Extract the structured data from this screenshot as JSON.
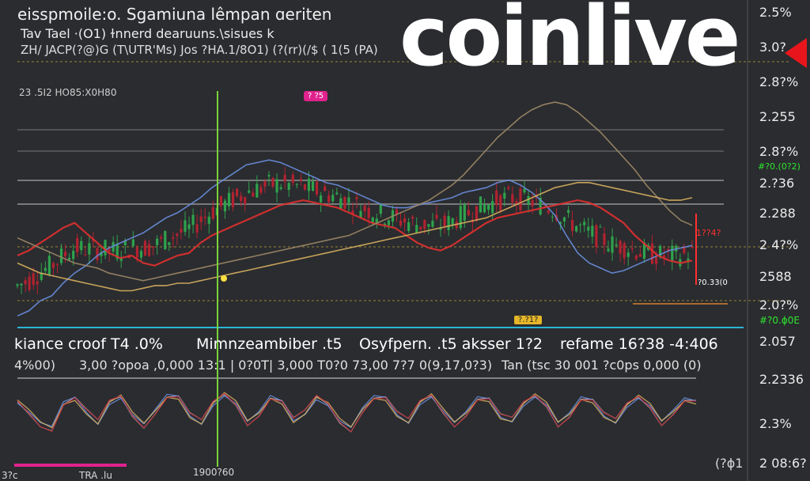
{
  "header": {
    "line1": "eisspmoile:o. Sgamiuna lêmpan ɑeriten",
    "line2": "Tav Tael ·(O1) ɫnnerd dearuuns.\\sisues k",
    "line3": "ZH/ JACP(?@)G (T\\UTR'Ms) Jos ?HA.1/8O1) (?(rr)(/$ ( 1(5 (PA)"
  },
  "sub_label": "23 .5I2 HO85:X0H80",
  "logo": {
    "text": "coinlive",
    "color": "#ffffff",
    "accent_color": "#e8161c"
  },
  "right_axis": {
    "labels": [
      "2.5%",
      "3.0?",
      "2.8?%",
      "2.255",
      "2.8?%",
      "2.?36",
      "2.288",
      "2 4?%",
      "2588",
      "2.0?%",
      "2.057",
      "2.2336",
      "2.3%",
      "2 08:6?"
    ],
    "colored_labels": [
      {
        "text": "#?0.(0?2)",
        "color": "#2ee62e"
      },
      {
        "text": "1??4?",
        "color": "#ff3030"
      },
      {
        "text": "?0.33(0",
        "color": "#ffffff"
      },
      {
        "text": "#?0.ɸ0E",
        "color": "#2ee62e"
      }
    ]
  },
  "indicator_labels": [
    {
      "text": "kiance croof  T4   .0%"
    },
    {
      "text": "Mimnzeambiber  .t5"
    },
    {
      "text": "Osyfpern. .t5  aksser  1?2"
    },
    {
      "text": "refame   16?38 -4:406"
    }
  ],
  "indicator_values": [
    {
      "text": "4%00)"
    },
    {
      "text": "3,00 ?opoa ,0,000 13:1 | 0?0T|  3,000  T0?0 73,00 7?7 0(9,17,0?3)"
    },
    {
      "text": "Tan (tsc 30 001 ?c0ps 0,000 (0)"
    }
  ],
  "bottom_labels": [
    "3?c",
    "TRA .lu",
    "1900?60",
    "(?ɸ1"
  ],
  "badges": [
    {
      "text": "? ?5",
      "color": "#e0228e"
    },
    {
      "text": "?.?1?",
      "color": "#e6b62a"
    }
  ],
  "colors": {
    "background": "#2a2c2f",
    "candle_up": "#2fa24c",
    "candle_down": "#b22230",
    "ma_red": "#e03030",
    "ma_blue": "#6a8ee0",
    "ma_yellow": "#d8b060",
    "cursor_green": "#7ad13a",
    "baseline_cyan": "#2ab6d8"
  },
  "chart_data": {
    "type": "line",
    "series": [
      {
        "values": [
          1.98,
          2.02,
          2.1,
          2.14,
          2.24,
          2.32,
          2.38,
          2.46,
          2.52,
          2.56,
          2.6,
          2.64,
          2.7,
          2.76,
          2.8,
          2.86,
          2.92,
          3.0,
          3.06,
          3.12,
          3.18,
          3.2,
          3.22,
          3.2,
          3.16,
          3.12,
          3.08,
          3.04,
          3.02,
          2.98,
          2.94,
          2.9,
          2.86,
          2.84,
          2.84,
          2.86,
          2.88,
          2.9,
          2.92,
          2.96,
          2.98,
          3.0,
          3.04,
          3.06,
          3.02,
          2.96,
          2.88,
          2.78,
          2.62,
          2.48,
          2.4,
          2.36,
          2.32,
          2.34,
          2.38,
          2.42,
          2.46,
          2.5,
          2.52,
          2.54
        ]
      },
      {
        "values": [
          2.46,
          2.5,
          2.56,
          2.62,
          2.68,
          2.72,
          2.64,
          2.56,
          2.48,
          2.44,
          2.46,
          2.4,
          2.38,
          2.42,
          2.46,
          2.48,
          2.56,
          2.62,
          2.66,
          2.7,
          2.74,
          2.78,
          2.82,
          2.86,
          2.88,
          2.9,
          2.88,
          2.86,
          2.84,
          2.8,
          2.76,
          2.72,
          2.7,
          2.68,
          2.62,
          2.56,
          2.52,
          2.5,
          2.54,
          2.6,
          2.66,
          2.72,
          2.76,
          2.78,
          2.8,
          2.82,
          2.84,
          2.86,
          2.88,
          2.9,
          2.88,
          2.84,
          2.78,
          2.72,
          2.62,
          2.54,
          2.46,
          2.42,
          2.4,
          2.42
        ]
      },
      {
        "values": [
          2.6,
          2.56,
          2.52,
          2.48,
          2.44,
          2.4,
          2.38,
          2.36,
          2.32,
          2.3,
          2.28,
          2.26,
          2.28,
          2.3,
          2.32,
          2.34,
          2.36,
          2.38,
          2.4,
          2.42,
          2.44,
          2.46,
          2.48,
          2.5,
          2.52,
          2.54,
          2.56,
          2.58,
          2.6,
          2.62,
          2.66,
          2.7,
          2.74,
          2.78,
          2.82,
          2.86,
          2.9,
          2.96,
          3.02,
          3.1,
          3.2,
          3.3,
          3.4,
          3.48,
          3.56,
          3.62,
          3.66,
          3.68,
          3.66,
          3.6,
          3.52,
          3.44,
          3.34,
          3.24,
          3.14,
          3.02,
          2.92,
          2.82,
          2.74,
          2.7
        ]
      },
      {
        "values": [
          2.4,
          2.36,
          2.32,
          2.3,
          2.28,
          2.26,
          2.24,
          2.22,
          2.2,
          2.18,
          2.18,
          2.2,
          2.22,
          2.22,
          2.24,
          2.24,
          2.26,
          2.28,
          2.3,
          2.32,
          2.34,
          2.36,
          2.38,
          2.4,
          2.42,
          2.44,
          2.46,
          2.48,
          2.5,
          2.52,
          2.54,
          2.56,
          2.58,
          2.6,
          2.62,
          2.64,
          2.66,
          2.68,
          2.7,
          2.72,
          2.74,
          2.76,
          2.8,
          2.84,
          2.88,
          2.92,
          2.96,
          3.0,
          3.02,
          3.04,
          3.04,
          3.02,
          3.0,
          2.98,
          2.96,
          2.94,
          2.92,
          2.9,
          2.9,
          2.92
        ]
      }
    ],
    "indicator": {
      "values": [
        0.62,
        0.48,
        0.3,
        0.22,
        0.6,
        0.66,
        0.42,
        0.24,
        0.58,
        0.7,
        0.44,
        0.28,
        0.5,
        0.72,
        0.68,
        0.36,
        0.24,
        0.56,
        0.74,
        0.62,
        0.32,
        0.46,
        0.7,
        0.6,
        0.28,
        0.4,
        0.66,
        0.58,
        0.34,
        0.22,
        0.52,
        0.7,
        0.66,
        0.38,
        0.26,
        0.58,
        0.72,
        0.5,
        0.3,
        0.46,
        0.68,
        0.64,
        0.34,
        0.28,
        0.56,
        0.72,
        0.6,
        0.3,
        0.44,
        0.68,
        0.62,
        0.36,
        0.26,
        0.54,
        0.7,
        0.58,
        0.32,
        0.48,
        0.66,
        0.6
      ]
    }
  }
}
